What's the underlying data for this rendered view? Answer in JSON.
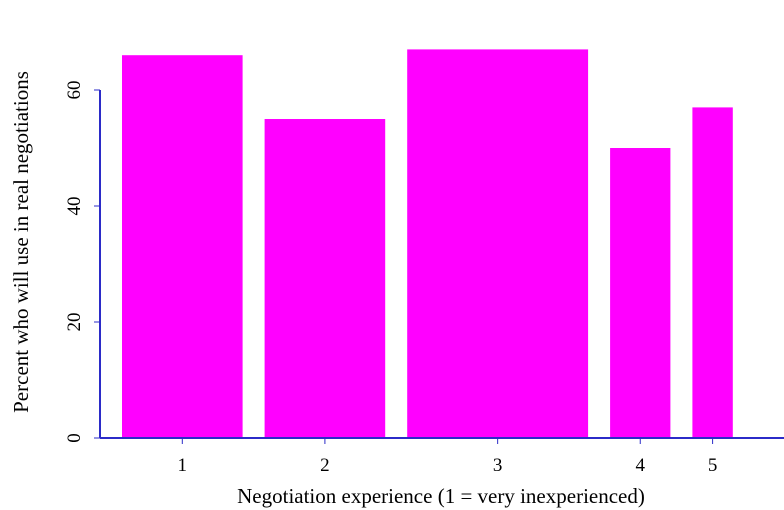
{
  "chart_data": {
    "type": "bar",
    "categories": [
      "1",
      "2",
      "3",
      "4",
      "5"
    ],
    "bar_widths": [
      2,
      2,
      3,
      1,
      0.67
    ],
    "values": [
      66,
      55,
      67,
      50,
      57
    ],
    "xlabel": "Negotiation experience (1 = very inexperienced)",
    "ylabel": "Percent who will use in real negotiations",
    "ylim": [
      0,
      70
    ],
    "yticks": [
      0,
      20,
      40,
      60
    ],
    "grid": false,
    "legend": "none",
    "colors": {
      "bar": "#ff00ff",
      "axis": "#2b2bc8",
      "text": "#000000"
    }
  }
}
